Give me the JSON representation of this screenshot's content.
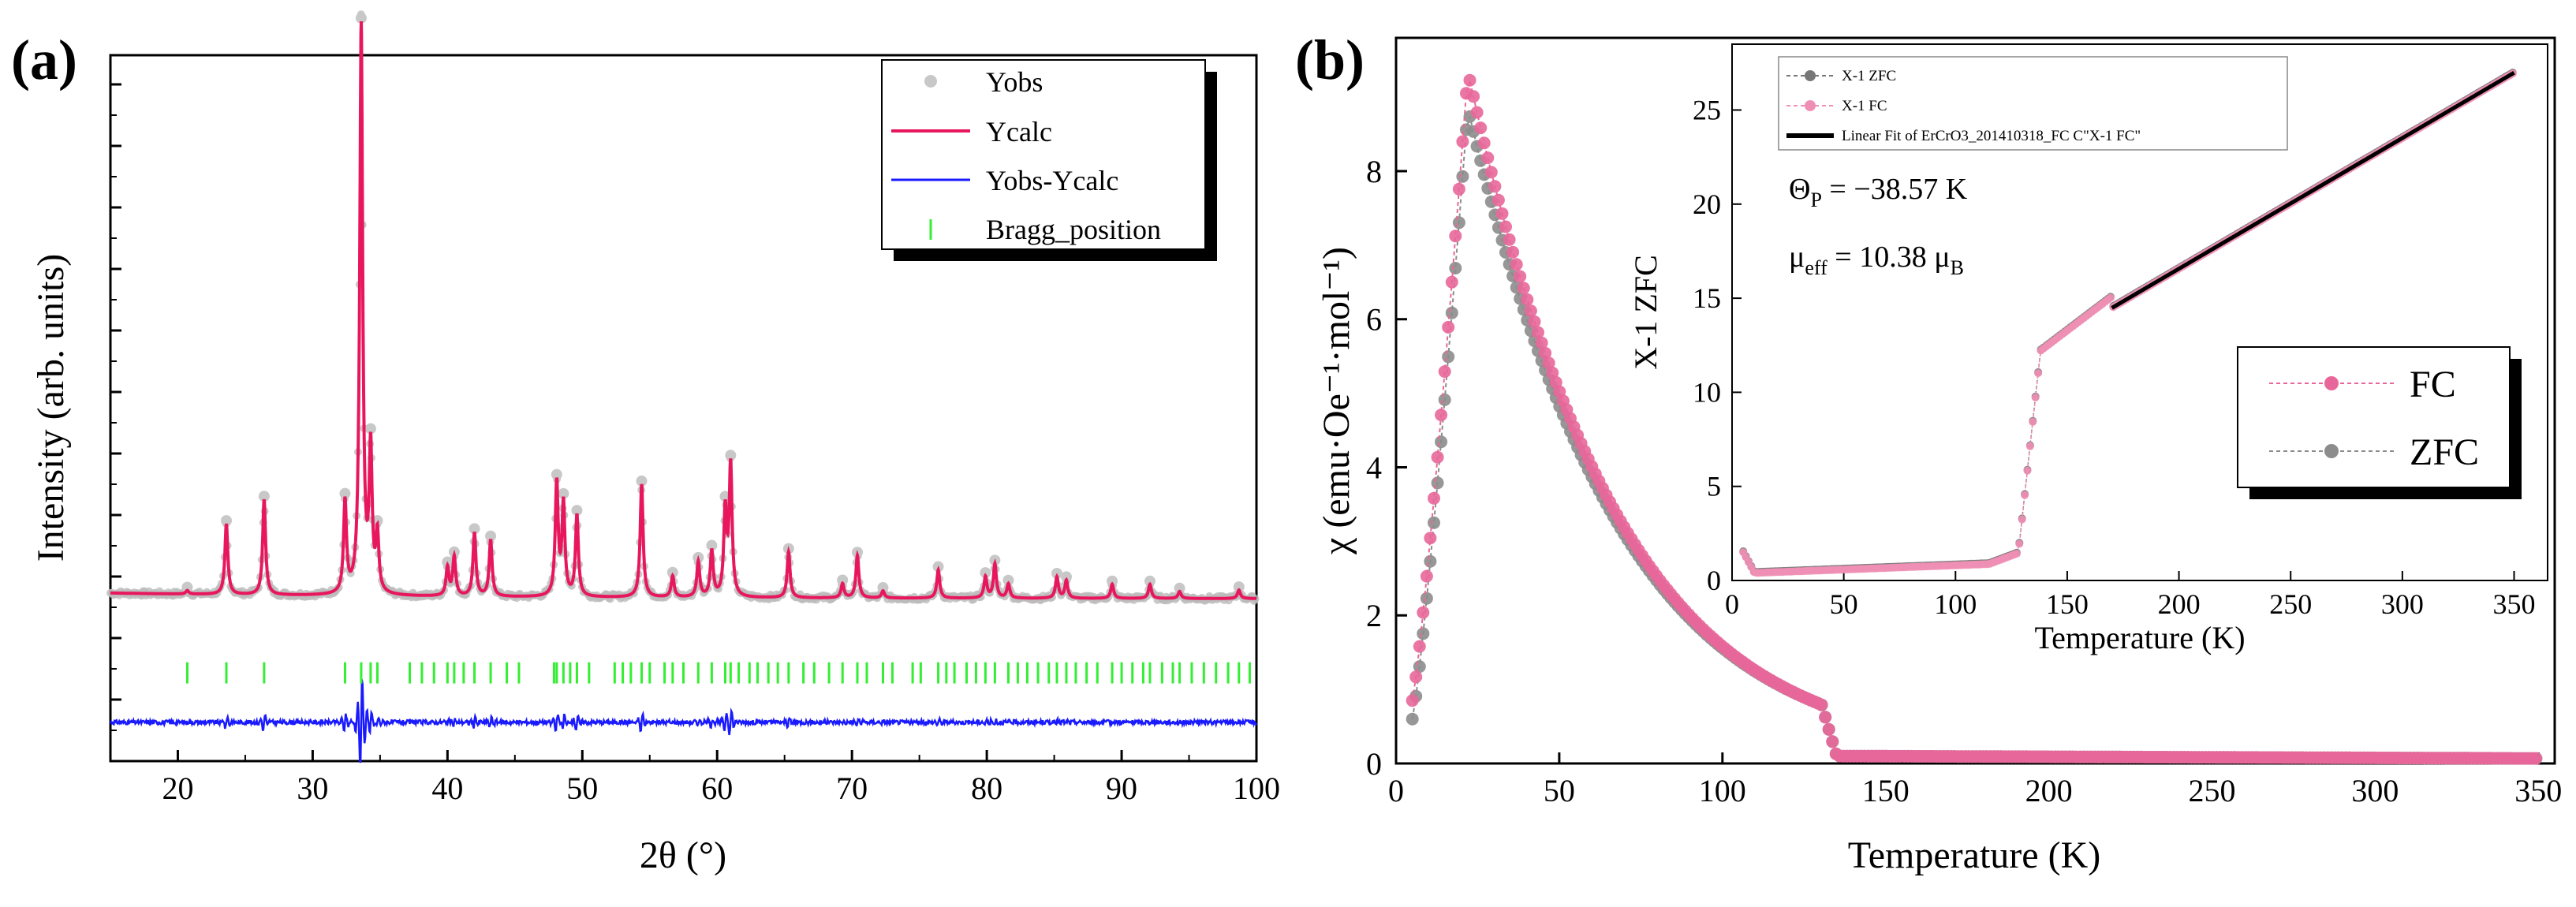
{
  "figure": {
    "panel_a_label": "(a)",
    "panel_b_label": "(b)"
  },
  "chart_data": [
    {
      "id": "a",
      "type": "line",
      "title": "",
      "xlabel": "2θ (°)",
      "ylabel": "Intensity (arb. units)",
      "xlim": [
        15,
        100
      ],
      "xticks": [
        20,
        30,
        40,
        50,
        60,
        70,
        80,
        90,
        100
      ],
      "yticks_labeled": false,
      "background_level": 0.23,
      "peaks": [
        {
          "x": 20.7,
          "h": 0.005
        },
        {
          "x": 23.6,
          "h": 0.1
        },
        {
          "x": 26.4,
          "h": 0.135
        },
        {
          "x": 32.4,
          "h": 0.13
        },
        {
          "x": 33.6,
          "h": 0.805
        },
        {
          "x": 34.3,
          "h": 0.2
        },
        {
          "x": 34.8,
          "h": 0.08
        },
        {
          "x": 40.0,
          "h": 0.04
        },
        {
          "x": 40.5,
          "h": 0.055
        },
        {
          "x": 42.0,
          "h": 0.09
        },
        {
          "x": 43.2,
          "h": 0.08
        },
        {
          "x": 48.1,
          "h": 0.16
        },
        {
          "x": 48.6,
          "h": 0.13
        },
        {
          "x": 49.6,
          "h": 0.115
        },
        {
          "x": 54.4,
          "h": 0.16
        },
        {
          "x": 56.7,
          "h": 0.03
        },
        {
          "x": 58.6,
          "h": 0.05
        },
        {
          "x": 59.6,
          "h": 0.065
        },
        {
          "x": 60.6,
          "h": 0.12
        },
        {
          "x": 61.0,
          "h": 0.185
        },
        {
          "x": 65.3,
          "h": 0.065
        },
        {
          "x": 69.3,
          "h": 0.02
        },
        {
          "x": 70.4,
          "h": 0.06
        },
        {
          "x": 72.3,
          "h": 0.01
        },
        {
          "x": 76.4,
          "h": 0.04
        },
        {
          "x": 79.9,
          "h": 0.03
        },
        {
          "x": 80.6,
          "h": 0.048
        },
        {
          "x": 81.6,
          "h": 0.02
        },
        {
          "x": 85.2,
          "h": 0.03
        },
        {
          "x": 85.9,
          "h": 0.025
        },
        {
          "x": 89.3,
          "h": 0.02
        },
        {
          "x": 92.1,
          "h": 0.02
        },
        {
          "x": 94.3,
          "h": 0.01
        },
        {
          "x": 98.7,
          "h": 0.012
        }
      ],
      "bragg_positions": [
        20.7,
        23.6,
        26.4,
        32.4,
        33.6,
        34.3,
        34.8,
        37.2,
        38.1,
        39.0,
        40.0,
        40.5,
        41.2,
        42.0,
        43.2,
        44.4,
        45.3,
        47.9,
        48.1,
        48.6,
        49.1,
        49.6,
        50.5,
        52.4,
        53.0,
        53.6,
        54.4,
        55.0,
        56.1,
        56.7,
        57.5,
        58.6,
        59.6,
        60.6,
        61.0,
        61.6,
        62.4,
        63.0,
        63.8,
        64.5,
        65.3,
        66.4,
        67.2,
        68.3,
        69.3,
        70.4,
        71.1,
        72.3,
        73.0,
        74.5,
        75.1,
        76.4,
        77.0,
        77.6,
        78.5,
        79.2,
        79.9,
        80.6,
        81.6,
        82.3,
        83.0,
        83.8,
        84.6,
        85.2,
        85.9,
        86.6,
        87.4,
        88.2,
        89.3,
        90.0,
        90.8,
        91.6,
        92.1,
        93.0,
        93.8,
        94.3,
        95.2,
        96.1,
        97.0,
        97.9,
        98.7,
        99.5
      ],
      "legend_position": "top-right",
      "series": [
        {
          "name": "Yobs",
          "color": "#c8c8c8",
          "style": "markers"
        },
        {
          "name": "Ycalc",
          "color": "#e8175d",
          "style": "line"
        },
        {
          "name": "Yobs-Ycalc",
          "color": "#1a1aff",
          "style": "line"
        },
        {
          "name": "Bragg_position",
          "color": "#33ee33",
          "style": "ticks"
        }
      ]
    },
    {
      "id": "b",
      "type": "scatter",
      "title": "",
      "xlabel": "Temperature (K)",
      "ylabel": "χ (emu·Oe⁻¹·mol⁻¹)",
      "xlim": [
        0,
        355
      ],
      "ylim": [
        0,
        9.8
      ],
      "xticks": [
        0,
        50,
        100,
        150,
        200,
        250,
        300,
        350
      ],
      "yticks": [
        0,
        2,
        4,
        6,
        8
      ],
      "legend_position": "lower-right of inset",
      "curve_params": {
        "peak_T": 22,
        "FC_peak": 9.35,
        "ZFC_peak": 8.85,
        "onset_T": 5,
        "FC_start": 0.85,
        "ZFC_start": 0.6,
        "transition_T": 134,
        "chi_at_130": 0.85,
        "chi_above_transition": 0.1
      },
      "series": [
        {
          "name": "FC",
          "color": "#e8679a",
          "T_range": [
            5,
            350
          ]
        },
        {
          "name": "ZFC",
          "color": "#8c8c8c",
          "T_range": [
            5,
            350
          ]
        }
      ]
    },
    {
      "id": "b-inset",
      "type": "scatter",
      "title": "",
      "xlabel": "Temperature (K)",
      "ylabel": "X-1 ZFC",
      "xlim": [
        0,
        365
      ],
      "ylim": [
        0,
        28.5
      ],
      "xticks": [
        0,
        50,
        100,
        150,
        200,
        250,
        300,
        350
      ],
      "yticks": [
        0,
        5,
        10,
        15,
        20,
        25
      ],
      "legend_position": "top-left",
      "annotations": {
        "theta_symbol": "Θ",
        "theta_sub": "P",
        "theta_value": " = −38.57 K",
        "mu_symbol": "μ",
        "mu_sub": "eff",
        "mu_value": " = 10.38 μ",
        "mu_unit_sub": "B"
      },
      "inverse_params": {
        "theta_P": -38.57,
        "C": 14.4,
        "low_T_value": 0.4,
        "jump_T": 134
      },
      "series": [
        {
          "name": "X-1 ZFC",
          "color": "#777777"
        },
        {
          "name": "X-1 FC",
          "color": "#f08fb5"
        },
        {
          "name": "Linear Fit of ErCrO3_201410318_FC C\"X-1 FC\"",
          "color": "#000000",
          "fit_range": [
            170,
            350
          ]
        }
      ]
    }
  ]
}
